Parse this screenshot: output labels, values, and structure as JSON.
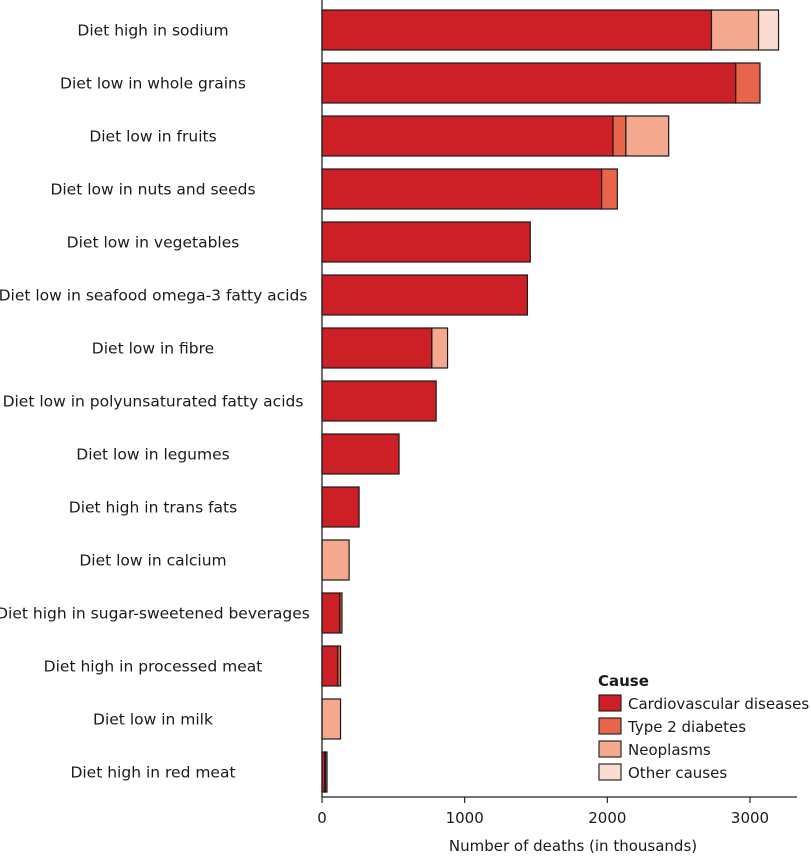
{
  "chart_data": {
    "type": "bar",
    "orientation": "horizontal",
    "stacked": true,
    "categories": [
      "Diet high in sodium",
      "Diet low in whole grains",
      "Diet low in fruits",
      "Diet low in nuts and seeds",
      "Diet low in vegetables",
      "Diet low in seafood omega-3 fatty acids",
      "Diet low in fibre",
      "Diet low in polyunsaturated fatty acids",
      "Diet low in legumes",
      "Diet high in trans fats",
      "Diet low in calcium",
      "Diet high in sugar-sweetened beverages",
      "Diet high in processed meat",
      "Diet low in milk",
      "Diet high in red meat"
    ],
    "series": [
      {
        "name": "Cardiovascular diseases",
        "color": "#cc1f26",
        "values": [
          2730,
          2900,
          2040,
          1960,
          1460,
          1440,
          770,
          800,
          540,
          260,
          0,
          125,
          110,
          0,
          20
        ]
      },
      {
        "name": "Type 2 diabetes",
        "color": "#e8644a",
        "values": [
          0,
          170,
          90,
          110,
          0,
          0,
          0,
          0,
          0,
          0,
          0,
          15,
          20,
          0,
          5
        ]
      },
      {
        "name": "Neoplasms",
        "color": "#f4a98f",
        "values": [
          330,
          0,
          300,
          0,
          0,
          0,
          110,
          0,
          0,
          0,
          190,
          0,
          0,
          130,
          10
        ]
      },
      {
        "name": "Other causes",
        "color": "#fbdcd3",
        "values": [
          140,
          0,
          0,
          0,
          0,
          0,
          0,
          0,
          0,
          0,
          0,
          0,
          0,
          0,
          0
        ]
      }
    ],
    "xlabel": "Number of deaths (in thousands)",
    "ylabel": "",
    "xlim": [
      0,
      3300
    ],
    "xticks": [
      0,
      1000,
      2000,
      3000
    ],
    "grid": false,
    "legend": {
      "title": "Cause",
      "position": "bottom-right"
    }
  }
}
